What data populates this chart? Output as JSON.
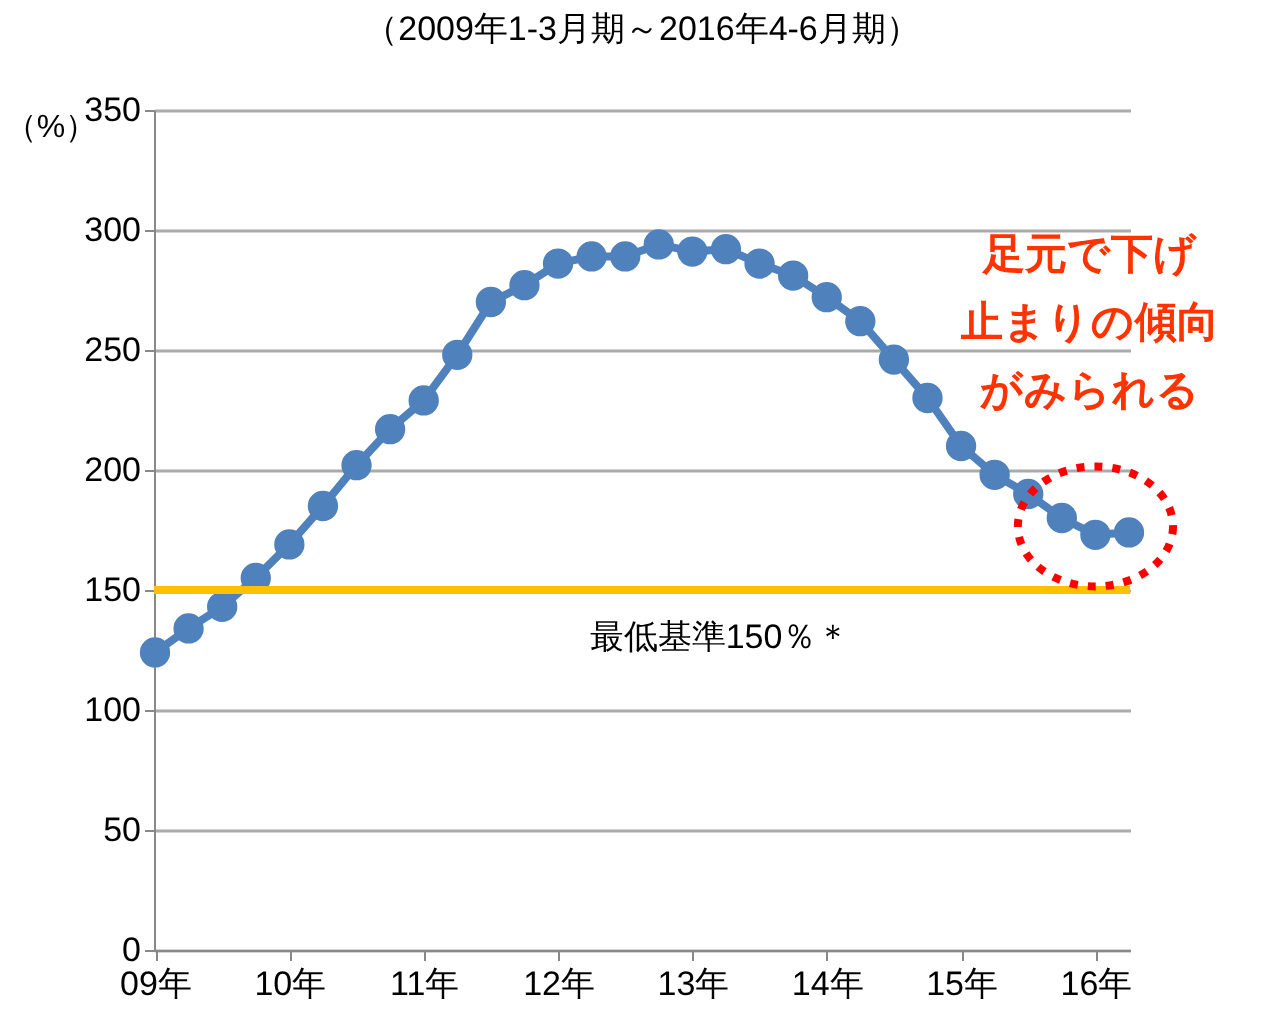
{
  "chart_data": {
    "type": "line",
    "title": "（2009年1-3月期～2016年4-6月期）",
    "ylabel": "（%）",
    "categories": [
      "09年",
      null,
      null,
      null,
      "10年",
      null,
      null,
      null,
      "11年",
      null,
      null,
      null,
      "12年",
      null,
      null,
      null,
      "13年",
      null,
      null,
      null,
      "14年",
      null,
      null,
      null,
      "15年",
      null,
      null,
      null,
      "16年",
      null
    ],
    "series": [
      {
        "color": "#4f81bd",
        "values": [
          124,
          134,
          143,
          155,
          169,
          185,
          202,
          217,
          229,
          248,
          270,
          277,
          286,
          289,
          289,
          294,
          291,
          292,
          286,
          281,
          272,
          262,
          246,
          230,
          210,
          198,
          190,
          180,
          173,
          174
        ]
      }
    ],
    "ylim": [
      0,
      350
    ],
    "yticks": [
      0,
      50,
      100,
      150,
      200,
      250,
      300,
      350
    ],
    "grid": "y",
    "marker": "circle",
    "ref_lines": [
      {
        "axis": "y",
        "value": 150,
        "label": "最低基準150％＊",
        "color": "#ffc000"
      }
    ],
    "annotations": [
      "足元で下げ",
      "止まりの傾向",
      "がみられる"
    ]
  }
}
